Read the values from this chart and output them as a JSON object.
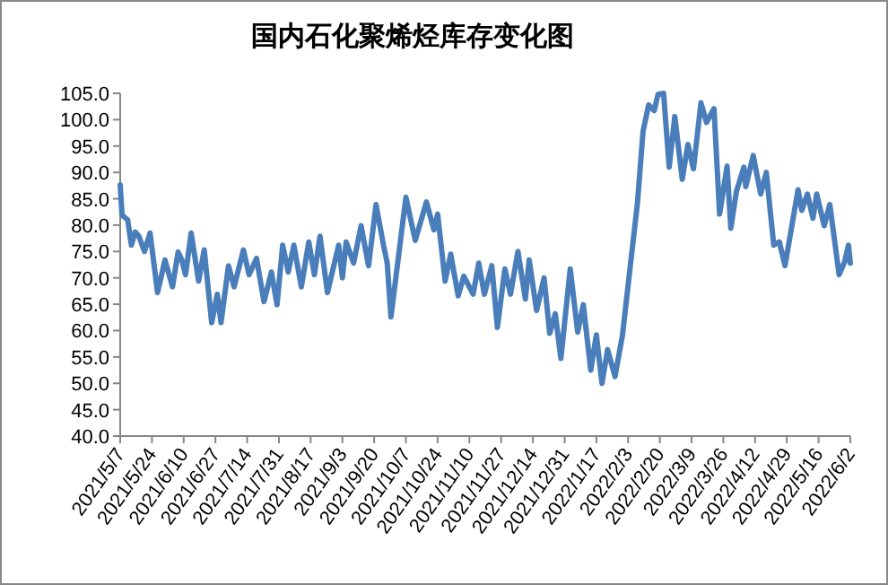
{
  "chart_data": {
    "type": "line",
    "title": "国内石化聚烯烃库存变化图",
    "x": [
      "2021-05-07",
      "2021-05-08",
      "2021-05-11",
      "2021-05-13",
      "2021-05-15",
      "2021-05-17",
      "2021-05-20",
      "2021-05-23",
      "2021-05-27",
      "2021-05-31",
      "2021-06-04",
      "2021-06-07",
      "2021-06-09",
      "2021-06-11",
      "2021-06-14",
      "2021-06-18",
      "2021-06-21",
      "2021-06-25",
      "2021-06-28",
      "2021-06-30",
      "2021-07-04",
      "2021-07-07",
      "2021-07-12",
      "2021-07-15",
      "2021-07-19",
      "2021-07-23",
      "2021-07-27",
      "2021-07-30",
      "2021-08-02",
      "2021-08-05",
      "2021-08-08",
      "2021-08-12",
      "2021-08-16",
      "2021-08-19",
      "2021-08-22",
      "2021-08-26",
      "2021-09-01",
      "2021-09-03",
      "2021-09-05",
      "2021-09-09",
      "2021-09-13",
      "2021-09-17",
      "2021-09-21",
      "2021-09-25",
      "2021-09-27",
      "2021-09-29",
      "2021-10-07",
      "2021-10-12",
      "2021-10-18",
      "2021-10-22",
      "2021-10-24",
      "2021-10-28",
      "2021-10-31",
      "2021-11-04",
      "2021-11-07",
      "2021-11-12",
      "2021-11-15",
      "2021-11-18",
      "2021-11-22",
      "2021-11-25",
      "2021-11-29",
      "2021-12-02",
      "2021-12-06",
      "2021-12-10",
      "2021-12-12",
      "2021-12-16",
      "2021-12-20",
      "2021-12-23",
      "2021-12-26",
      "2021-12-29",
      "2022-01-03",
      "2022-01-07",
      "2022-01-10",
      "2022-01-14",
      "2022-01-17",
      "2022-01-20",
      "2022-01-23",
      "2022-01-27",
      "2022-01-31",
      "2022-02-04",
      "2022-02-08",
      "2022-02-11",
      "2022-02-14",
      "2022-02-17",
      "2022-02-19",
      "2022-02-22",
      "2022-02-25",
      "2022-02-28",
      "2022-03-04",
      "2022-03-07",
      "2022-03-10",
      "2022-03-14",
      "2022-03-17",
      "2022-03-21",
      "2022-03-24",
      "2022-03-28",
      "2022-03-30",
      "2022-04-02",
      "2022-04-06",
      "2022-04-07",
      "2022-04-11",
      "2022-04-15",
      "2022-04-18",
      "2022-04-22",
      "2022-04-25",
      "2022-04-28",
      "2022-05-05",
      "2022-05-07",
      "2022-05-10",
      "2022-05-13",
      "2022-05-15",
      "2022-05-19",
      "2022-05-22",
      "2022-05-27",
      "2022-05-30",
      "2022-06-01",
      "2022-06-02"
    ],
    "series": [
      {
        "color": "#4a7ebb",
        "values": [
          87.6,
          81.9,
          81.0,
          76.2,
          78.7,
          77.9,
          75.0,
          78.5,
          67.2,
          73.4,
          68.3,
          74.9,
          73.4,
          70.6,
          78.5,
          69.4,
          75.3,
          61.5,
          66.9,
          61.5,
          72.3,
          68.3,
          75.3,
          70.6,
          73.7,
          65.5,
          71.1,
          64.9,
          76.2,
          71.1,
          76.2,
          68.3,
          76.8,
          70.6,
          77.9,
          67.2,
          76.2,
          70.0,
          76.8,
          72.8,
          79.9,
          72.3,
          83.9,
          76.2,
          72.8,
          62.6,
          85.3,
          77.1,
          84.4,
          79.1,
          82.1,
          69.4,
          74.5,
          66.6,
          70.3,
          66.9,
          72.8,
          66.9,
          72.3,
          60.6,
          71.7,
          66.9,
          75.0,
          66.0,
          73.4,
          63.8,
          70.0,
          59.5,
          63.2,
          54.7,
          71.7,
          59.7,
          64.9,
          52.5,
          59.2,
          50.0,
          56.4,
          51.3,
          59.2,
          71.7,
          84.2,
          97.8,
          102.8,
          101.7,
          104.8,
          105.0,
          91.0,
          100.6,
          88.7,
          95.3,
          90.7,
          103.2,
          99.5,
          102.1,
          82.1,
          91.2,
          79.4,
          86.4,
          91.0,
          87.3,
          93.2,
          85.9,
          90.0,
          76.2,
          76.8,
          72.3,
          86.7,
          82.8,
          85.9,
          81.3,
          85.9,
          79.9,
          83.9,
          70.6,
          73.1,
          76.2,
          72.8
        ]
      }
    ],
    "xlim": [
      "2021-05-07",
      "2022-06-02"
    ],
    "xticks": [
      {
        "value": "2021-05-07",
        "label": "2021/5/7"
      },
      {
        "value": "2021-05-24",
        "label": "2021/5/24"
      },
      {
        "value": "2021-06-10",
        "label": "2021/6/10"
      },
      {
        "value": "2021-06-27",
        "label": "2021/6/27"
      },
      {
        "value": "2021-07-14",
        "label": "2021/7/14"
      },
      {
        "value": "2021-07-31",
        "label": "2021/7/31"
      },
      {
        "value": "2021-08-17",
        "label": "2021/8/17"
      },
      {
        "value": "2021-09-03",
        "label": "2021/9/3"
      },
      {
        "value": "2021-09-20",
        "label": "2021/9/20"
      },
      {
        "value": "2021-10-07",
        "label": "2021/10/7"
      },
      {
        "value": "2021-10-24",
        "label": "2021/10/24"
      },
      {
        "value": "2021-11-10",
        "label": "2021/11/10"
      },
      {
        "value": "2021-11-27",
        "label": "2021/11/27"
      },
      {
        "value": "2021-12-14",
        "label": "2021/12/14"
      },
      {
        "value": "2021-12-31",
        "label": "2021/12/31"
      },
      {
        "value": "2022-01-17",
        "label": "2022/1/17"
      },
      {
        "value": "2022-02-03",
        "label": "2022/2/3"
      },
      {
        "value": "2022-02-20",
        "label": "2022/2/20"
      },
      {
        "value": "2022-03-09",
        "label": "2022/3/9"
      },
      {
        "value": "2022-03-26",
        "label": "2022/3/26"
      },
      {
        "value": "2022-04-12",
        "label": "2022/4/12"
      },
      {
        "value": "2022-04-29",
        "label": "2022/4/29"
      },
      {
        "value": "2022-05-16",
        "label": "2022/5/16"
      },
      {
        "value": "2022-06-02",
        "label": "2022/6/2"
      }
    ],
    "ylim": [
      40,
      105
    ],
    "yticks": [
      {
        "value": 40,
        "label": "40.0"
      },
      {
        "value": 45,
        "label": "45.0"
      },
      {
        "value": 50,
        "label": "50.0"
      },
      {
        "value": 55,
        "label": "55.0"
      },
      {
        "value": 60,
        "label": "60.0"
      },
      {
        "value": 65,
        "label": "65.0"
      },
      {
        "value": 70,
        "label": "70.0"
      },
      {
        "value": 75,
        "label": "75.0"
      },
      {
        "value": 80,
        "label": "80.0"
      },
      {
        "value": 85,
        "label": "85.0"
      },
      {
        "value": 90,
        "label": "90.0"
      },
      {
        "value": 95,
        "label": "95.0"
      },
      {
        "value": 100,
        "label": "100.0"
      },
      {
        "value": 105,
        "label": "105.0"
      }
    ],
    "grid": false,
    "marker": "none",
    "line_style": "solid"
  }
}
